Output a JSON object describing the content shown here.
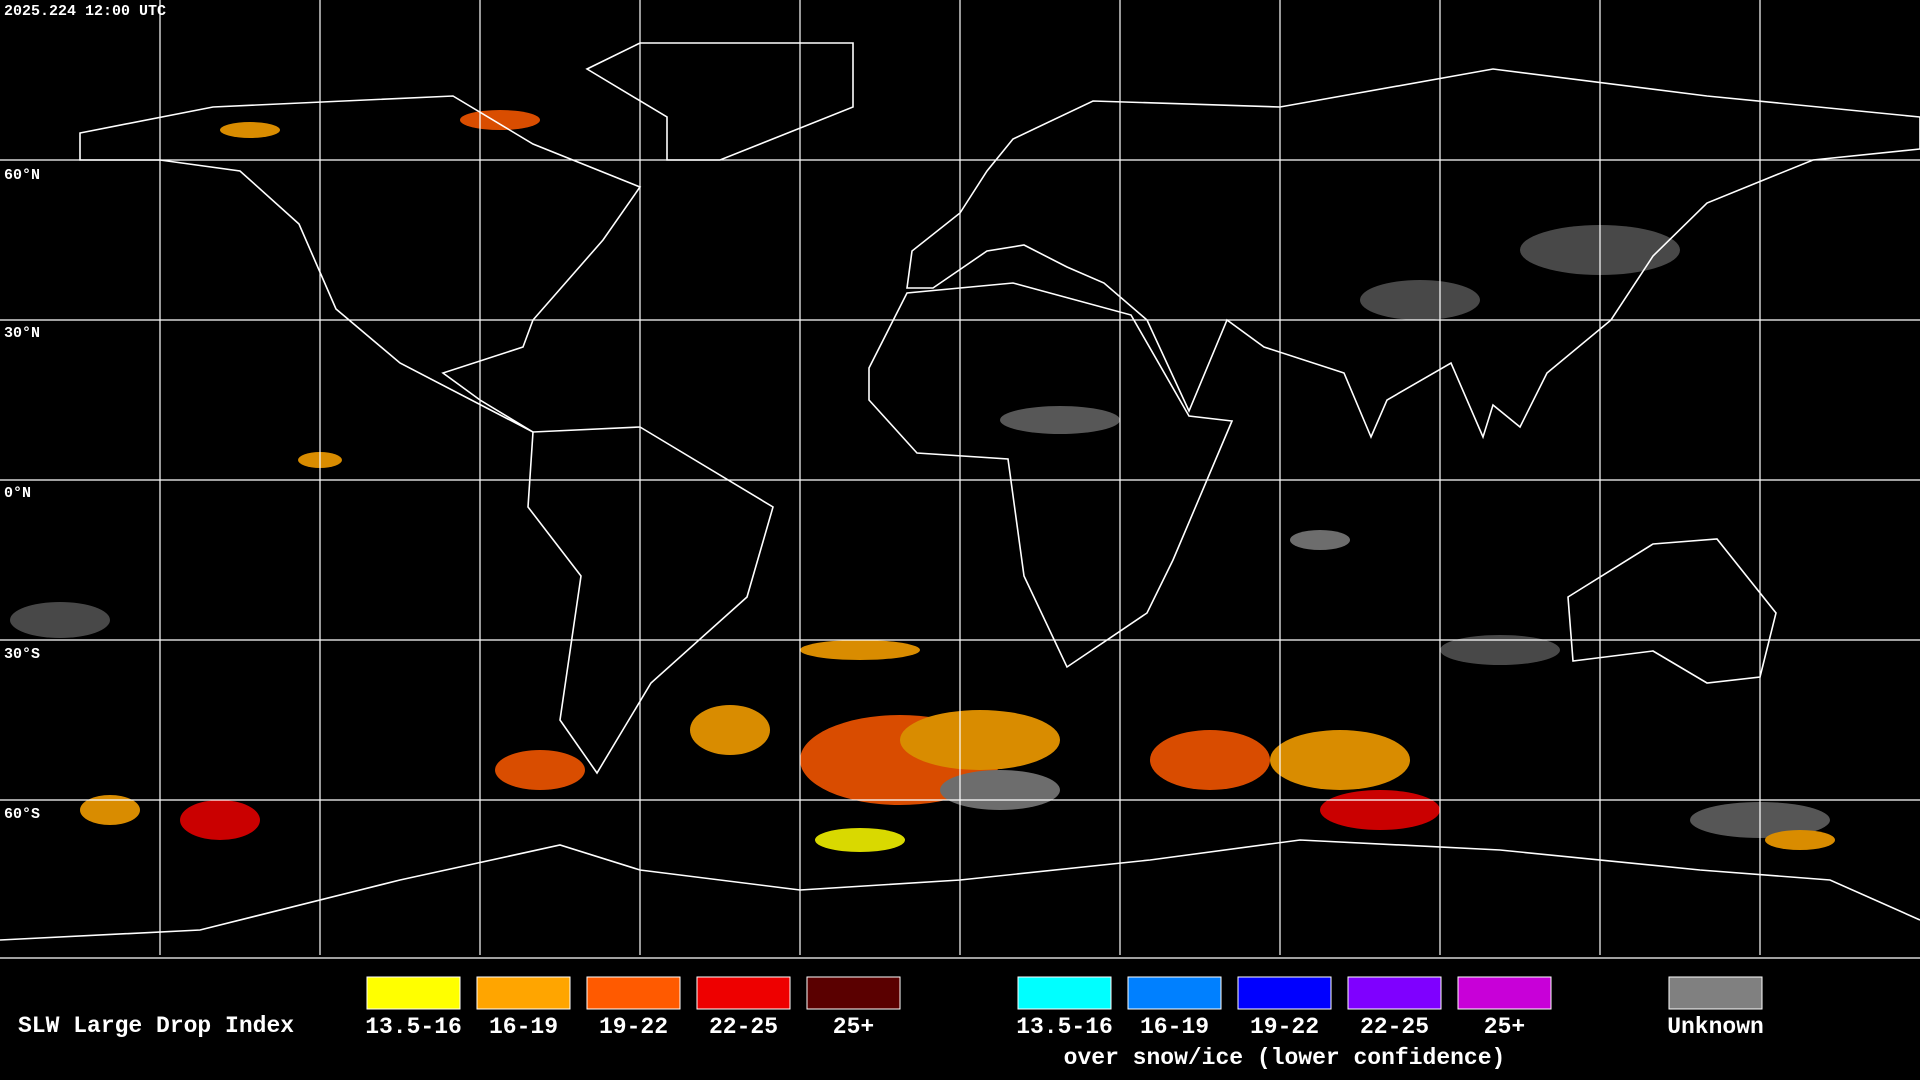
{
  "header": {
    "timestamp": "2025.224 12:00 UTC"
  },
  "map": {
    "latitude_labels": [
      "60°N",
      "30°N",
      "0°N",
      "30°S",
      "60°S"
    ]
  },
  "legend": {
    "title": "SLW Large Drop Index",
    "groups": [
      {
        "items": [
          {
            "label": "13.5-16",
            "color": "#ffff00"
          },
          {
            "label": "16-19",
            "color": "#ffa500"
          },
          {
            "label": "19-22",
            "color": "#ff5a00"
          },
          {
            "label": "22-25",
            "color": "#ee0000"
          },
          {
            "label": "25+",
            "color": "#5a0000"
          }
        ]
      },
      {
        "items": [
          {
            "label": "13.5-16",
            "color": "#00ffff"
          },
          {
            "label": "16-19",
            "color": "#0080ff"
          },
          {
            "label": "19-22",
            "color": "#0000ff"
          },
          {
            "label": "22-25",
            "color": "#7f00ff"
          },
          {
            "label": "25+",
            "color": "#c800d8"
          }
        ],
        "caption": "over snow/ice (lower confidence)"
      },
      {
        "items": [
          {
            "label": "Unknown",
            "color": "#808080"
          }
        ]
      }
    ]
  }
}
